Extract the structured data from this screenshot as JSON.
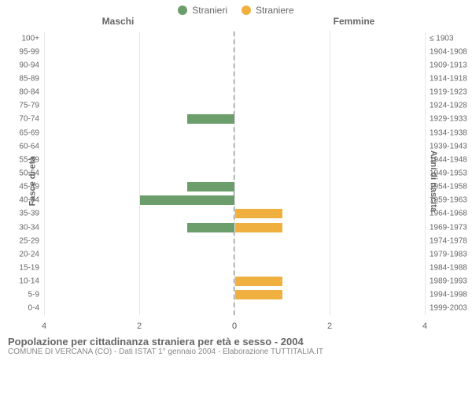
{
  "legend": {
    "male": {
      "label": "Stranieri",
      "color": "#6b9e6b"
    },
    "female": {
      "label": "Straniere",
      "color": "#f0b040"
    }
  },
  "headers": {
    "left": "Maschi",
    "right": "Femmine"
  },
  "axes": {
    "y_left_title": "Fasce di età",
    "y_right_title": "Anni di nascita",
    "x_max": 4,
    "x_ticks_left": [
      4,
      2,
      0
    ],
    "x_ticks_right": [
      0,
      2,
      4
    ],
    "grid_color": "#e6e6e6",
    "center_line_color": "#808080"
  },
  "rows": [
    {
      "age": "100+",
      "birth": "≤ 1903",
      "m": 0,
      "f": 0
    },
    {
      "age": "95-99",
      "birth": "1904-1908",
      "m": 0,
      "f": 0
    },
    {
      "age": "90-94",
      "birth": "1909-1913",
      "m": 0,
      "f": 0
    },
    {
      "age": "85-89",
      "birth": "1914-1918",
      "m": 0,
      "f": 0
    },
    {
      "age": "80-84",
      "birth": "1919-1923",
      "m": 0,
      "f": 0
    },
    {
      "age": "75-79",
      "birth": "1924-1928",
      "m": 0,
      "f": 0
    },
    {
      "age": "70-74",
      "birth": "1929-1933",
      "m": 1,
      "f": 0
    },
    {
      "age": "65-69",
      "birth": "1934-1938",
      "m": 0,
      "f": 0
    },
    {
      "age": "60-64",
      "birth": "1939-1943",
      "m": 0,
      "f": 0
    },
    {
      "age": "55-59",
      "birth": "1944-1948",
      "m": 0,
      "f": 0
    },
    {
      "age": "50-54",
      "birth": "1949-1953",
      "m": 0,
      "f": 0
    },
    {
      "age": "45-49",
      "birth": "1954-1958",
      "m": 1,
      "f": 0
    },
    {
      "age": "40-44",
      "birth": "1959-1963",
      "m": 2,
      "f": 0
    },
    {
      "age": "35-39",
      "birth": "1964-1968",
      "m": 0,
      "f": 1
    },
    {
      "age": "30-34",
      "birth": "1969-1973",
      "m": 1,
      "f": 1
    },
    {
      "age": "25-29",
      "birth": "1974-1978",
      "m": 0,
      "f": 0
    },
    {
      "age": "20-24",
      "birth": "1979-1983",
      "m": 0,
      "f": 0
    },
    {
      "age": "15-19",
      "birth": "1984-1988",
      "m": 0,
      "f": 0
    },
    {
      "age": "10-14",
      "birth": "1989-1993",
      "m": 0,
      "f": 1
    },
    {
      "age": "5-9",
      "birth": "1994-1998",
      "m": 0,
      "f": 1
    },
    {
      "age": "0-4",
      "birth": "1999-2003",
      "m": 0,
      "f": 0
    }
  ],
  "footer": {
    "title": "Popolazione per cittadinanza straniera per età e sesso - 2004",
    "subtitle": "COMUNE DI VERCANA (CO) - Dati ISTAT 1° gennaio 2004 - Elaborazione TUTTITALIA.IT"
  },
  "style": {
    "background": "#ffffff",
    "text_color": "#666666",
    "font_size_labels": 10,
    "font_size_axis": 11,
    "font_size_legend": 12,
    "font_size_title": 13,
    "bar_height_ratio": 0.7
  }
}
